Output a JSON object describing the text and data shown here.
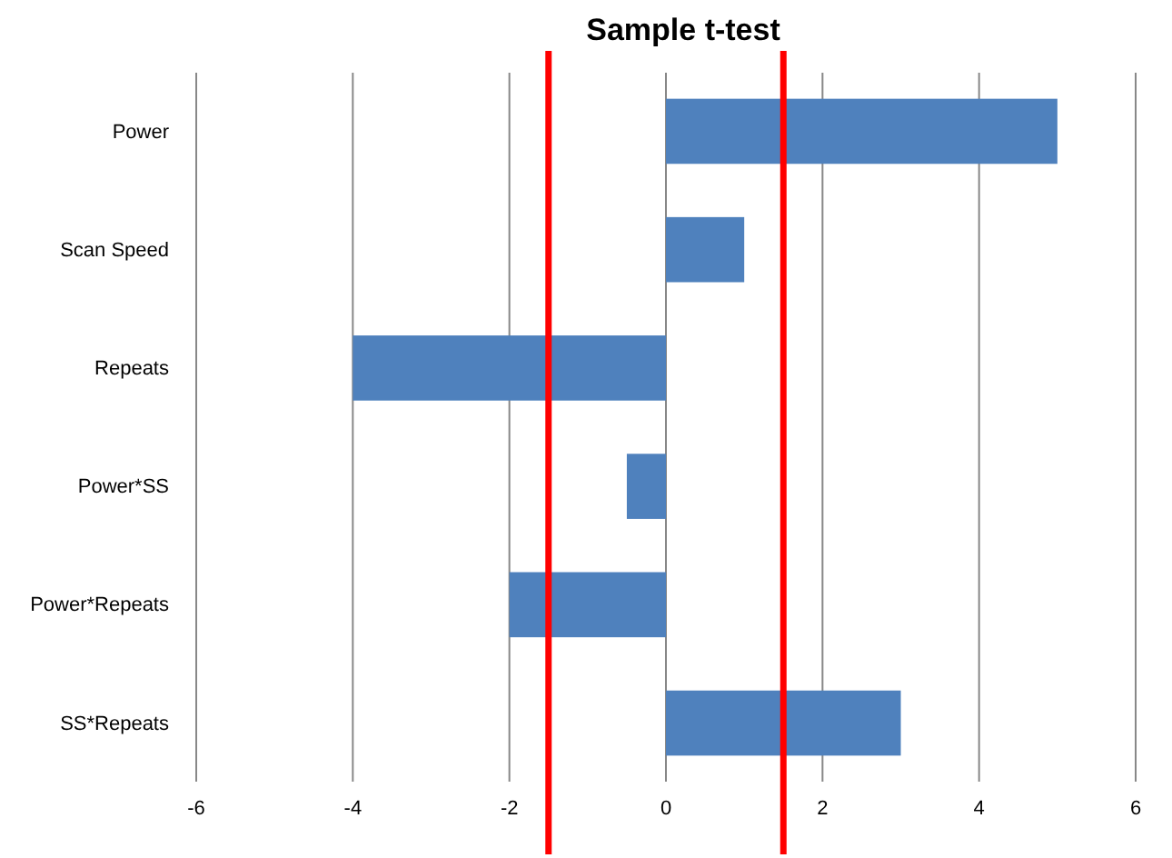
{
  "chart_data": {
    "type": "bar",
    "title": "Sample t-test",
    "orientation": "horizontal",
    "categories": [
      "Power",
      "Scan Speed",
      "Repeats",
      "Power*SS",
      "Power*Repeats",
      "SS*Repeats"
    ],
    "values": [
      5,
      1,
      -4,
      -0.5,
      -2,
      3
    ],
    "color": "#4f81bd",
    "xlim": [
      -6,
      6
    ],
    "xticks": [
      -6,
      -4,
      -2,
      0,
      2,
      4,
      6
    ],
    "grid": "x",
    "ref_lines": [
      {
        "axis": "x",
        "value": -1.5,
        "color": "#ff0000"
      },
      {
        "axis": "x",
        "value": 1.5,
        "color": "#ff0000"
      }
    ]
  }
}
